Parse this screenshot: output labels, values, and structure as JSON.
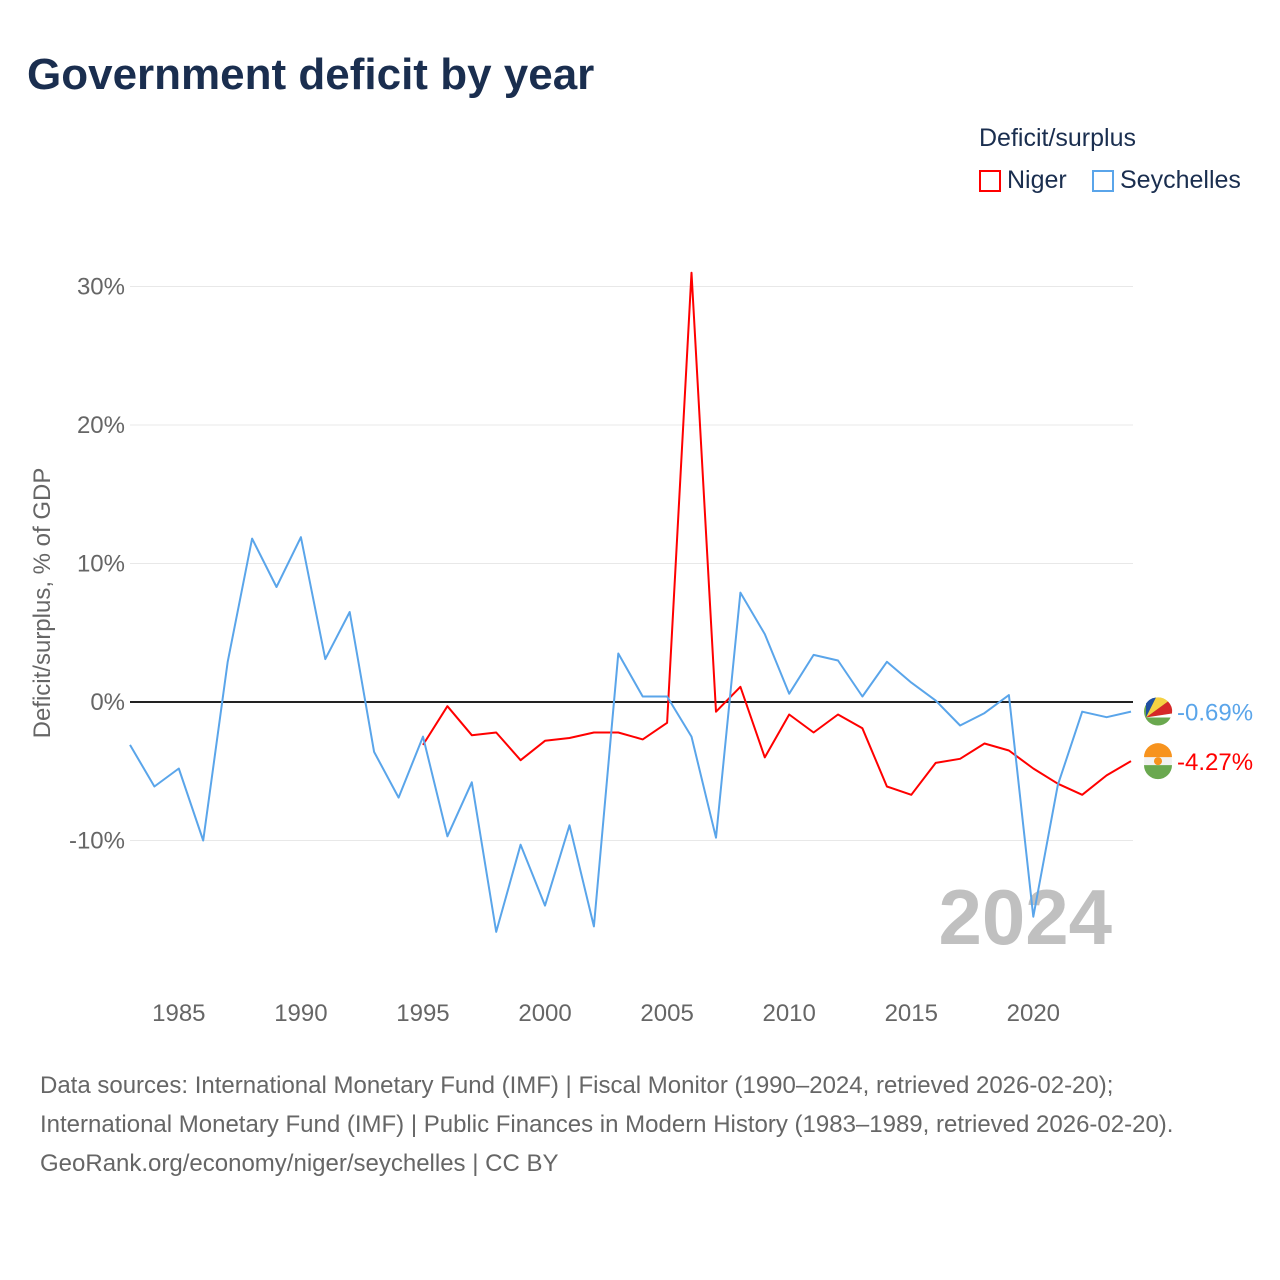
{
  "chart_data": {
    "type": "line",
    "title": "Government deficit by year",
    "legend_title": "Deficit/surplus",
    "legend_position": "top-right",
    "ylabel": "Deficit/surplus, % of GDP",
    "xlabel": "",
    "ylim": [
      -20,
      31.5
    ],
    "xlim": [
      1983,
      2024
    ],
    "y_ticks": [
      30,
      20,
      10,
      0,
      -10
    ],
    "y_tick_labels": [
      "30%",
      "20%",
      "10%",
      "0%",
      "-10%"
    ],
    "x_ticks": [
      1985,
      1990,
      1995,
      2000,
      2005,
      2010,
      2015,
      2020
    ],
    "x_tick_labels": [
      "1985",
      "1990",
      "1995",
      "2000",
      "2005",
      "2010",
      "2015",
      "2020"
    ],
    "grid": true,
    "year_watermark": "2024",
    "series": [
      {
        "name": "Niger",
        "color": "#ff0000",
        "end_label": "-4.27%",
        "x": [
          1995,
          1996,
          1997,
          1998,
          1999,
          2000,
          2001,
          2002,
          2003,
          2004,
          2005,
          2006,
          2007,
          2008,
          2009,
          2010,
          2011,
          2012,
          2013,
          2014,
          2015,
          2016,
          2017,
          2018,
          2019,
          2020,
          2021,
          2022,
          2023,
          2024
        ],
        "values": [
          -3.1,
          -0.3,
          -2.4,
          -2.2,
          -4.2,
          -2.8,
          -2.6,
          -2.2,
          -2.2,
          -2.7,
          -1.5,
          31.0,
          -0.7,
          1.1,
          -4.0,
          -0.9,
          -2.2,
          -0.9,
          -1.9,
          -6.1,
          -6.7,
          -4.4,
          -4.1,
          -3.0,
          -3.5,
          -4.8,
          -5.9,
          -6.7,
          -5.3,
          -4.27
        ]
      },
      {
        "name": "Seychelles",
        "color": "#5aa5ea",
        "end_label": "-0.69%",
        "x": [
          1983,
          1984,
          1985,
          1986,
          1987,
          1988,
          1989,
          1990,
          1991,
          1992,
          1993,
          1994,
          1995,
          1996,
          1997,
          1998,
          1999,
          2000,
          2001,
          2002,
          2003,
          2004,
          2005,
          2006,
          2007,
          2008,
          2009,
          2010,
          2011,
          2012,
          2013,
          2014,
          2015,
          2016,
          2017,
          2018,
          2019,
          2020,
          2021,
          2022,
          2023,
          2024
        ],
        "values": [
          -3.1,
          -6.1,
          -4.8,
          -10.0,
          2.9,
          11.8,
          8.3,
          11.9,
          3.1,
          6.5,
          -3.6,
          -6.9,
          -2.5,
          -9.7,
          -5.8,
          -16.6,
          -10.3,
          -14.7,
          -8.9,
          -16.2,
          3.5,
          0.4,
          0.4,
          -2.5,
          -9.8,
          7.9,
          4.9,
          0.6,
          3.4,
          3.0,
          0.4,
          2.9,
          1.4,
          0.1,
          -1.7,
          -0.8,
          0.5,
          -15.5,
          -6.0,
          -0.7,
          -1.1,
          -0.69
        ]
      }
    ]
  },
  "footer": {
    "sources": "Data sources: International Monetary Fund (IMF) | Fiscal Monitor (1990–2024, retrieved 2026-02-20); International Monetary Fund (IMF) | Public Finances in Modern History (1983–1989, retrieved 2026-02-20).",
    "credit": "GeoRank.org/economy/niger/seychelles | CC BY"
  }
}
